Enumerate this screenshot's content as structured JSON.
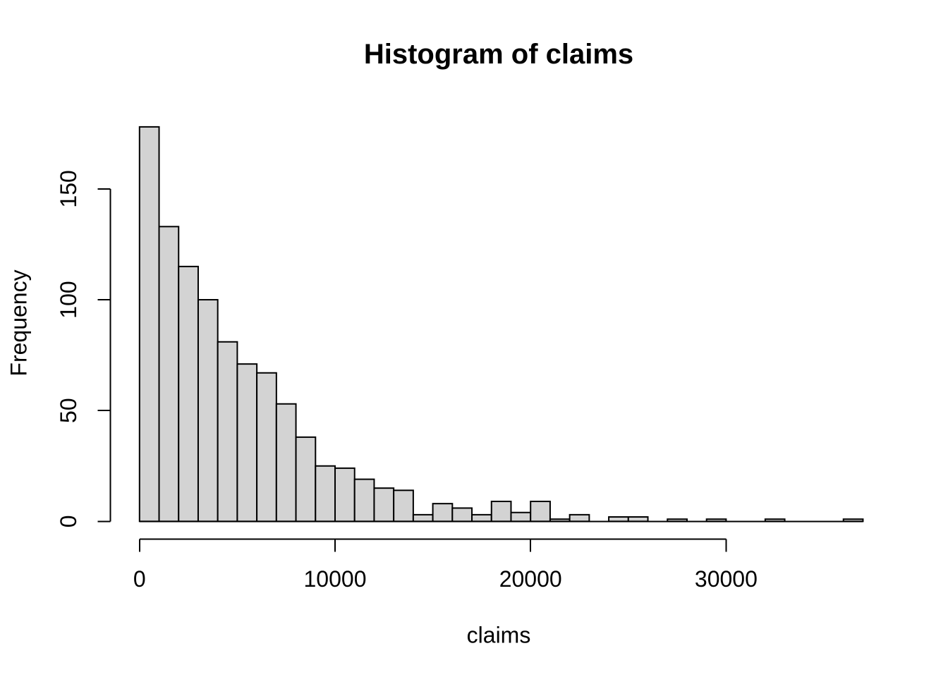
{
  "chart_data": {
    "type": "bar",
    "subtype": "histogram",
    "title": "Histogram of claims",
    "xlabel": "claims",
    "ylabel": "Frequency",
    "bin_start": 0,
    "bin_width": 1000,
    "counts": [
      178,
      133,
      115,
      100,
      81,
      71,
      67,
      53,
      38,
      25,
      24,
      19,
      15,
      14,
      3,
      8,
      6,
      3,
      9,
      4,
      9,
      1,
      3,
      0,
      2,
      2,
      0,
      1,
      0,
      1,
      0,
      0,
      1,
      0,
      0,
      0,
      1
    ],
    "x_ticks": [
      0,
      10000,
      20000,
      30000
    ],
    "x_tick_labels": [
      "0",
      "10000",
      "20000",
      "30000"
    ],
    "y_ticks": [
      0,
      50,
      100,
      150
    ],
    "y_tick_labels": [
      "0",
      "50",
      "100",
      "150"
    ],
    "xlim": [
      0,
      37000
    ],
    "ylim": [
      0,
      178
    ],
    "grid": "off",
    "legend": "none",
    "bar_fill": "#d3d3d3",
    "bar_stroke": "#000000",
    "axis_color": "#000000",
    "text_color": "#000000",
    "background": "#ffffff"
  }
}
